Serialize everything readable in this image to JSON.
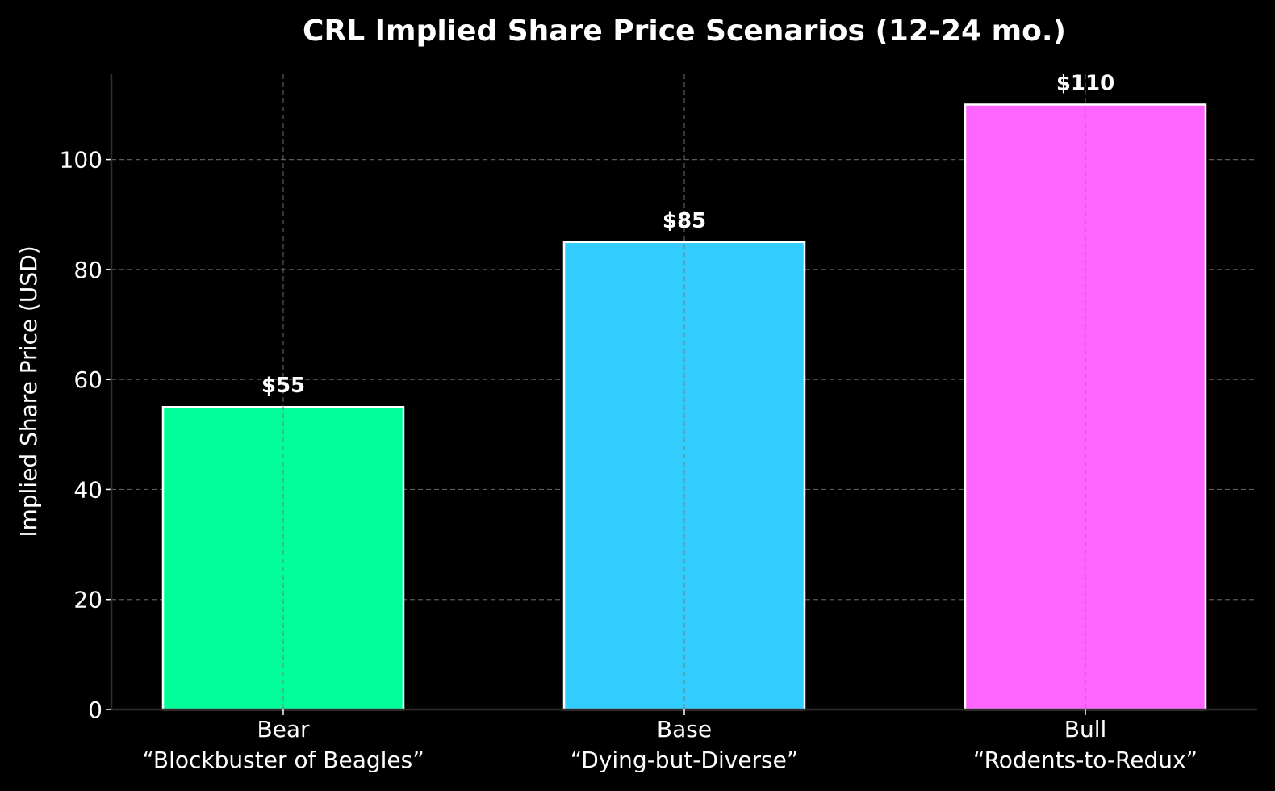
{
  "chart_data": {
    "type": "bar",
    "title": "CRL Implied Share Price Scenarios (12-24 mo.)",
    "xlabel": "",
    "ylabel": "Implied Share Price (USD)",
    "ylim": [
      0,
      115.5
    ],
    "yticks": [
      0,
      20,
      40,
      60,
      80,
      100
    ],
    "grid": true,
    "categories": [
      "Bear\n“Blockbuster of Beagles”",
      "Base\n“Dying-but-Diverse”",
      "Bull\n“Rodents-to-Redux”"
    ],
    "category_lines": [
      [
        "Bear",
        "“Blockbuster of Beagles”"
      ],
      [
        "Base",
        "“Dying-but-Diverse”"
      ],
      [
        "Bull",
        "“Rodents-to-Redux”"
      ]
    ],
    "values": [
      55,
      85,
      110
    ],
    "data_labels": [
      "$55",
      "$85",
      "$110"
    ],
    "colors": [
      "#00ff99",
      "#33ccff",
      "#ff66ff"
    ],
    "bar_edge_color": "#ffffff",
    "background_color": "#000000"
  }
}
